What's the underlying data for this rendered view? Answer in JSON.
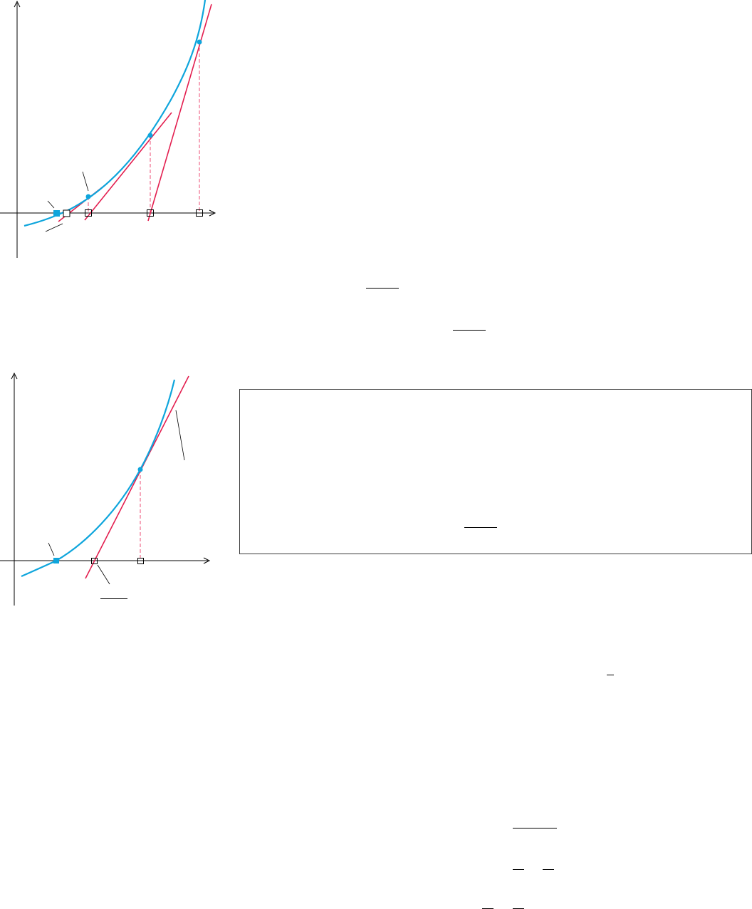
{
  "figures": [
    {
      "id": "newton-iterations",
      "curve_color": "#0ea5dc",
      "tangent_color": "#e31e4f",
      "guide_color": "#f06a8c",
      "marker_color": "#0ea5dc",
      "iterations": 4
    },
    {
      "id": "single-tangent",
      "curve_color": "#0ea5dc",
      "tangent_color": "#e31e4f",
      "guide_color": "#f06a8c",
      "marker_color": "#0ea5dc"
    }
  ],
  "page": {
    "boxed_note": true,
    "fraction_bars": 9
  }
}
